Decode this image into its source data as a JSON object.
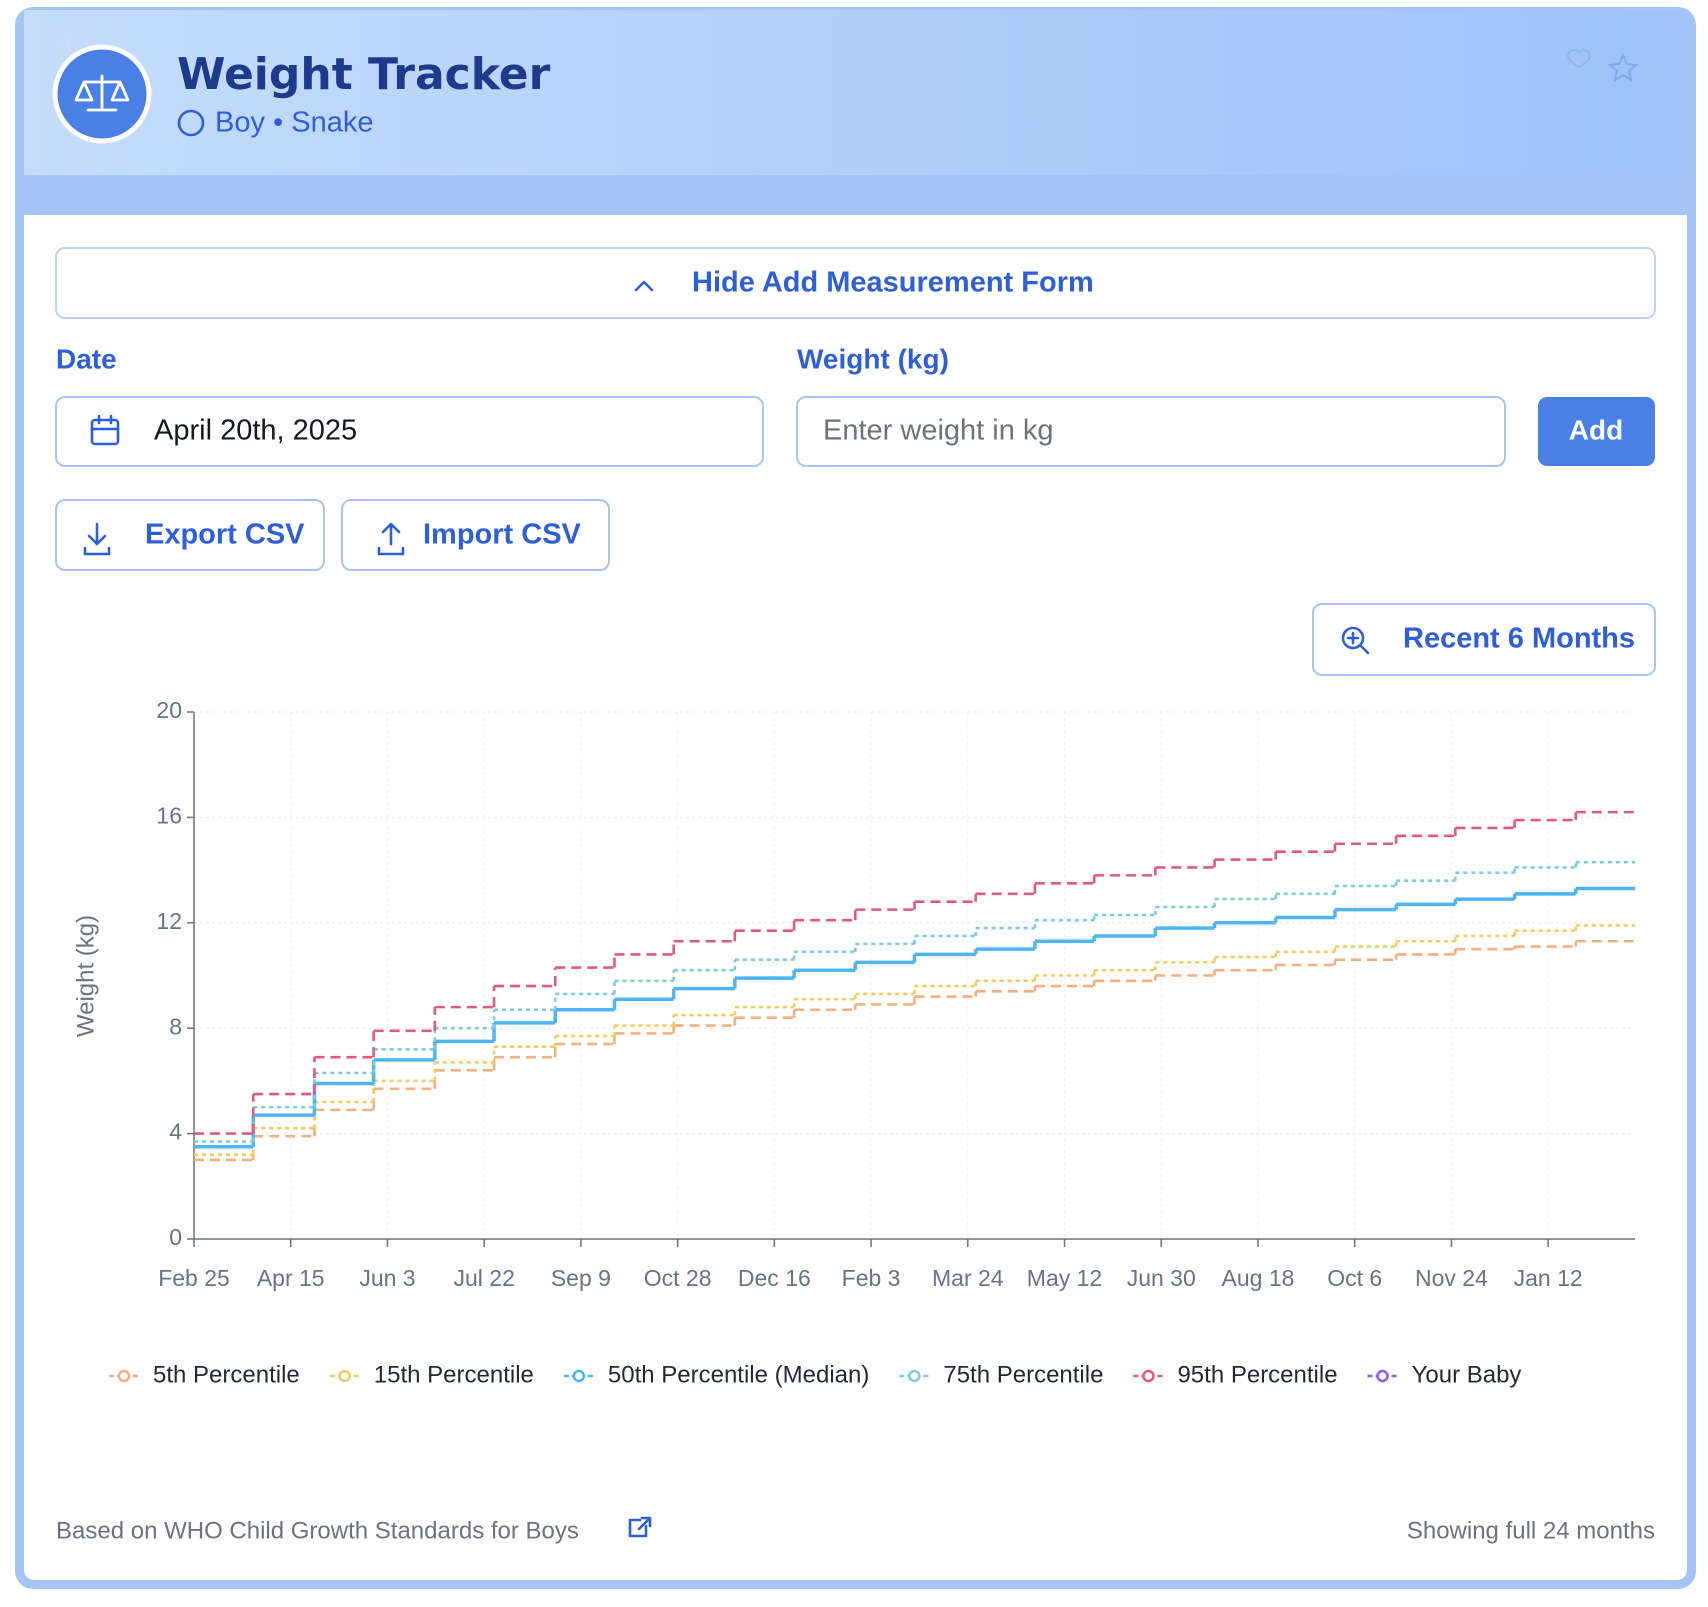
{
  "header": {
    "title": "Weight Tracker",
    "subtitle": "Boy • Snake"
  },
  "form": {
    "toggle": "Hide Add Measurement Form",
    "date_label": "Date",
    "date_value": "April 20th, 2025",
    "weight_label": "Weight (kg)",
    "weight_placeholder": "Enter weight in kg",
    "add_button": "Add",
    "export_button": "Export CSV",
    "import_button": "Import CSV",
    "zoom_button": "Recent 6 Months"
  },
  "chart_data": {
    "type": "step-line",
    "y_label": "Weight (kg)",
    "x": [
      0,
      30,
      61,
      91,
      122,
      152,
      183,
      213,
      243,
      274,
      304,
      335,
      365,
      396,
      426,
      456,
      487,
      517,
      548,
      578,
      609,
      639,
      669,
      700
    ],
    "xlim": [
      0,
      730
    ],
    "xticks": [
      {
        "value": 0,
        "label": "Feb 25"
      },
      {
        "value": 49,
        "label": "Apr 15"
      },
      {
        "value": 98,
        "label": "Jun 3"
      },
      {
        "value": 147,
        "label": "Jul 22"
      },
      {
        "value": 196,
        "label": "Sep 9"
      },
      {
        "value": 245,
        "label": "Oct 28"
      },
      {
        "value": 294,
        "label": "Dec 16"
      },
      {
        "value": 343,
        "label": "Feb 3"
      },
      {
        "value": 392,
        "label": "Mar 24"
      },
      {
        "value": 441,
        "label": "May 12"
      },
      {
        "value": 490,
        "label": "Jun 30"
      },
      {
        "value": 539,
        "label": "Aug 18"
      },
      {
        "value": 588,
        "label": "Oct 6"
      },
      {
        "value": 637,
        "label": "Nov 24"
      },
      {
        "value": 686,
        "label": "Jan 12"
      }
    ],
    "ylim": [
      0,
      20
    ],
    "yticks": [
      0,
      4,
      8,
      12,
      16,
      20
    ],
    "grid": true,
    "series": [
      {
        "name": "5th Percentile",
        "color": "#f2b07e",
        "style": "dashed",
        "values": [
          3.0,
          3.9,
          4.9,
          5.7,
          6.4,
          6.9,
          7.4,
          7.8,
          8.1,
          8.4,
          8.7,
          8.9,
          9.2,
          9.4,
          9.6,
          9.8,
          10.0,
          10.2,
          10.4,
          10.6,
          10.8,
          11.0,
          11.1,
          11.3
        ]
      },
      {
        "name": "15th Percentile",
        "color": "#f5cd5c",
        "style": "dotted",
        "values": [
          3.2,
          4.2,
          5.2,
          6.0,
          6.7,
          7.3,
          7.7,
          8.1,
          8.5,
          8.8,
          9.1,
          9.3,
          9.6,
          9.8,
          10.0,
          10.2,
          10.5,
          10.7,
          10.9,
          11.1,
          11.3,
          11.5,
          11.7,
          11.9
        ]
      },
      {
        "name": "50th Percentile (Median)",
        "color": "#4db5ef",
        "style": "solid",
        "values": [
          3.5,
          4.7,
          5.9,
          6.8,
          7.5,
          8.2,
          8.7,
          9.1,
          9.5,
          9.9,
          10.2,
          10.5,
          10.8,
          11.0,
          11.3,
          11.5,
          11.8,
          12.0,
          12.2,
          12.5,
          12.7,
          12.9,
          13.1,
          13.3
        ]
      },
      {
        "name": "75th Percentile",
        "color": "#7ccbe6",
        "style": "dotted",
        "values": [
          3.7,
          5.0,
          6.3,
          7.2,
          8.0,
          8.7,
          9.3,
          9.8,
          10.2,
          10.6,
          10.9,
          11.2,
          11.5,
          11.8,
          12.1,
          12.3,
          12.6,
          12.9,
          13.1,
          13.4,
          13.6,
          13.9,
          14.1,
          14.3
        ]
      },
      {
        "name": "95th Percentile",
        "color": "#e4587f",
        "style": "dashed",
        "values": [
          4.0,
          5.5,
          6.9,
          7.9,
          8.8,
          9.6,
          10.3,
          10.8,
          11.3,
          11.7,
          12.1,
          12.5,
          12.8,
          13.1,
          13.5,
          13.8,
          14.1,
          14.4,
          14.7,
          15.0,
          15.3,
          15.6,
          15.9,
          16.2
        ]
      },
      {
        "name": "Your Baby",
        "color": "#8b5cf6",
        "style": "solid",
        "values": [
          null,
          null,
          null,
          null,
          null,
          null,
          null,
          null,
          null,
          null,
          null,
          null,
          null,
          null,
          null,
          null,
          null,
          null,
          null,
          null,
          null,
          null,
          null,
          null
        ]
      }
    ]
  },
  "footer": {
    "source": "Based on WHO Child Growth Standards for Boys",
    "range_note": "Showing full 24 months"
  }
}
